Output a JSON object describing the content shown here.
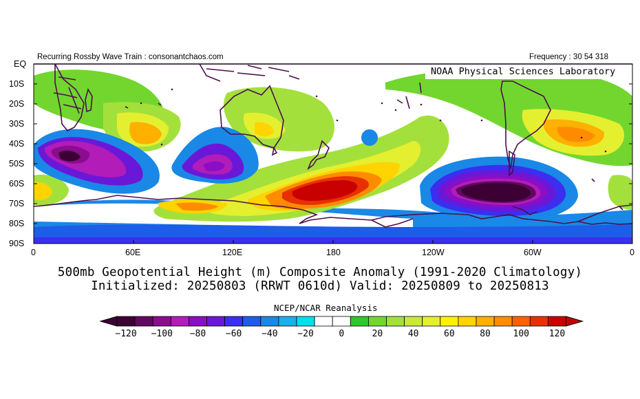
{
  "header": {
    "left_text": "Recurring Rossby Wave Train : consonantchaos.com",
    "right_text": "Frequency : 30 54 318"
  },
  "map": {
    "inset_label": "NOAA Physical Sciences Laboratory",
    "lat_labels": [
      "EQ",
      "10S",
      "20S",
      "30S",
      "40S",
      "50S",
      "60S",
      "70S",
      "80S",
      "90S"
    ],
    "lon_labels": [
      "0",
      "60E",
      "120E",
      "180",
      "120W",
      "60W",
      "0"
    ],
    "colors": {
      "land_outline": "#4b0d4b",
      "border": "#000000"
    }
  },
  "titles": {
    "line1": "500mb Geopotential Height (m) Composite Anomaly (1991-2020 Climatology)",
    "line2": "Initialized: 20250803 (RRWT 0610d) Valid: 20250809 to 20250813",
    "source": "NCEP/NCAR Reanalysis"
  },
  "colorbar": {
    "tick_labels": [
      "-120",
      "-100",
      "-80",
      "-60",
      "-40",
      "-20",
      "0",
      "20",
      "40",
      "60",
      "80",
      "100",
      "120"
    ],
    "colors": [
      "#3c0034",
      "#5f0a60",
      "#8a0d8e",
      "#b21cb8",
      "#8a0ec4",
      "#6a18d8",
      "#3a2ff0",
      "#1d5de8",
      "#1a88e6",
      "#1ab0e8",
      "#00e0ea",
      "#ffffff",
      "#ffffff",
      "#2fc62f",
      "#72d62f",
      "#a4e03c",
      "#c9e83a",
      "#e4ef2f",
      "#fff200",
      "#ffd400",
      "#ffb000",
      "#ff8c00",
      "#ff6000",
      "#e83000",
      "#c80000"
    ],
    "min_color": "#3c0034",
    "max_color": "#c80000"
  }
}
